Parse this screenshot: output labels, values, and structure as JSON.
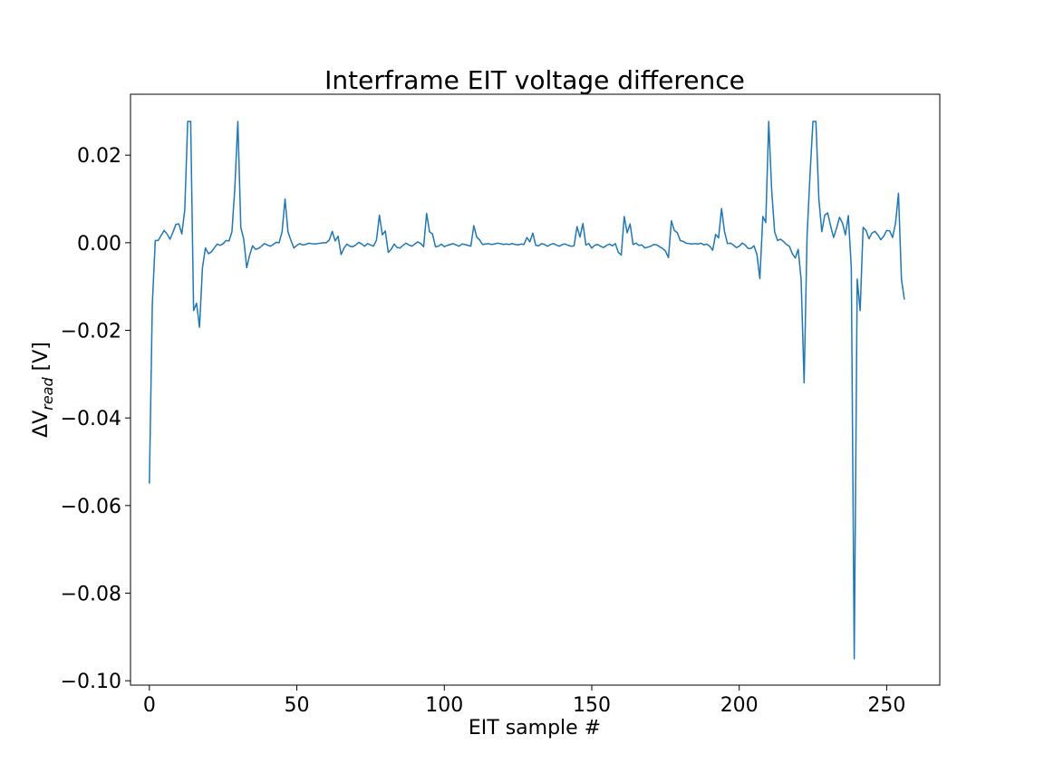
{
  "chart_data": {
    "type": "line",
    "title": "Interframe EIT voltage difference",
    "xlabel": "EIT sample #",
    "ylabel_prefix": "ΔV",
    "ylabel_sub": "read",
    "ylabel_suffix": " [V]",
    "xlim": [
      -6.4,
      268
    ],
    "ylim": [
      -0.101,
      0.0339
    ],
    "xticks": [
      0,
      50,
      100,
      150,
      200,
      250
    ],
    "xtick_labels": [
      "0",
      "50",
      "100",
      "150",
      "200",
      "250"
    ],
    "yticks": [
      0.02,
      0.0,
      -0.02,
      -0.04,
      -0.06,
      -0.08,
      -0.1
    ],
    "ytick_labels": [
      "0.02",
      "0.00",
      "−0.02",
      "−0.04",
      "−0.06",
      "−0.08",
      "−0.10"
    ],
    "grid": false,
    "color": "#1f77b4",
    "series": [
      {
        "values": [
          -0.055,
          -0.014,
          0.0005,
          0.0005,
          0.0017,
          0.0028,
          0.002,
          0.0008,
          0.0024,
          0.0042,
          0.0043,
          0.002,
          0.0075,
          0.0277,
          0.0277,
          -0.0155,
          -0.0138,
          -0.0193,
          -0.0057,
          -0.0012,
          -0.0025,
          -0.0021,
          -0.0012,
          -0.0003,
          -0.0006,
          -0.0002,
          0.0005,
          0.0004,
          0.0025,
          0.0128,
          0.0277,
          0.0035,
          0.0008,
          -0.0057,
          -0.0028,
          -0.0007,
          -0.0015,
          -0.0013,
          -0.0008,
          -0.0002,
          -0.0005,
          -0.0008,
          -0.0004,
          0.0001,
          0.0,
          0.0025,
          0.01,
          0.0025,
          0.0005,
          -0.0012,
          -0.0006,
          -0.0002,
          -0.0005,
          -0.0004,
          -0.0001,
          -0.0002,
          -0.0003,
          -0.0002,
          -0.0001,
          0.0,
          0.0,
          0.0006,
          0.0026,
          0.0004,
          0.0015,
          -0.0027,
          -0.0012,
          -0.0003,
          -0.0008,
          -0.0009,
          -0.0005,
          0.0001,
          -0.0003,
          -0.0008,
          -0.0002,
          -0.0005,
          -0.0008,
          0.0006,
          0.0063,
          0.0018,
          0.0027,
          -0.0022,
          -0.0015,
          -0.0003,
          -0.0011,
          -0.0012,
          -0.0006,
          -0.0001,
          -0.0005,
          -0.0008,
          -0.0003,
          0.0002,
          -0.0002,
          -0.0009,
          0.0067,
          0.0025,
          0.002,
          -0.0009,
          -0.0008,
          -0.0003,
          -0.0009,
          -0.0006,
          -0.0004,
          -0.0002,
          -0.0005,
          -0.0008,
          -0.0003,
          -0.0004,
          -0.0006,
          -0.0008,
          0.0039,
          0.0013,
          0.0006,
          -0.0004,
          -0.0003,
          -0.0002,
          -0.0004,
          -0.0003,
          -0.0001,
          -0.0002,
          -0.0004,
          -0.0003,
          -0.0004,
          -0.0002,
          -0.0004,
          -0.0005,
          -0.0003,
          -0.0004,
          0.0012,
          0.0002,
          0.0022,
          -0.0006,
          -0.0007,
          -0.0002,
          -0.0004,
          -0.0008,
          -0.0004,
          -0.0002,
          -0.0005,
          -0.0008,
          -0.0004,
          -0.0003,
          -0.0006,
          -0.0008,
          -0.0007,
          0.0037,
          0.0013,
          0.0044,
          -0.0005,
          -0.0002,
          -0.0012,
          -0.0006,
          -0.0004,
          -0.0008,
          -0.0011,
          -0.0006,
          -0.0003,
          -0.0007,
          -0.0002,
          -0.0022,
          -0.0028,
          0.006,
          0.0023,
          0.0043,
          -0.0004,
          -0.0001,
          -0.0006,
          -0.0005,
          -0.0012,
          -0.001,
          -0.0008,
          -0.0004,
          -0.0005,
          -0.0009,
          -0.0013,
          -0.0019,
          -0.0034,
          0.005,
          0.0028,
          0.0023,
          0.0005,
          0.0003,
          -0.0001,
          -0.0002,
          -0.0003,
          -0.0002,
          -0.0003,
          -0.0001,
          -0.0005,
          -0.0003,
          -0.0008,
          -0.0017,
          0.0019,
          0.0011,
          0.0078,
          0.0026,
          -0.0002,
          -0.0001,
          -0.0005,
          -0.0011,
          -0.0008,
          -0.0001,
          -0.0005,
          -0.0013,
          -0.0013,
          -0.0007,
          -0.0027,
          -0.0082,
          0.006,
          0.0046,
          0.0277,
          0.012,
          0.0025,
          0.0005,
          0.0008,
          0.0003,
          -0.0004,
          -0.0008,
          -0.0025,
          -0.0035,
          -0.0015,
          -0.0085,
          -0.032,
          0.0015,
          0.0155,
          0.0277,
          0.0277,
          0.01,
          0.0025,
          0.0063,
          0.0068,
          0.0038,
          0.0012,
          0.0033,
          0.0058,
          0.0045,
          0.0018,
          0.0062,
          -0.0058,
          -0.095,
          -0.0083,
          -0.0155,
          0.0035,
          0.0028,
          0.0009,
          0.0022,
          0.0026,
          0.0018,
          0.0007,
          0.0015,
          0.0028,
          0.0027,
          0.0012,
          0.0045,
          0.0113,
          -0.0083,
          -0.013
        ]
      }
    ]
  }
}
